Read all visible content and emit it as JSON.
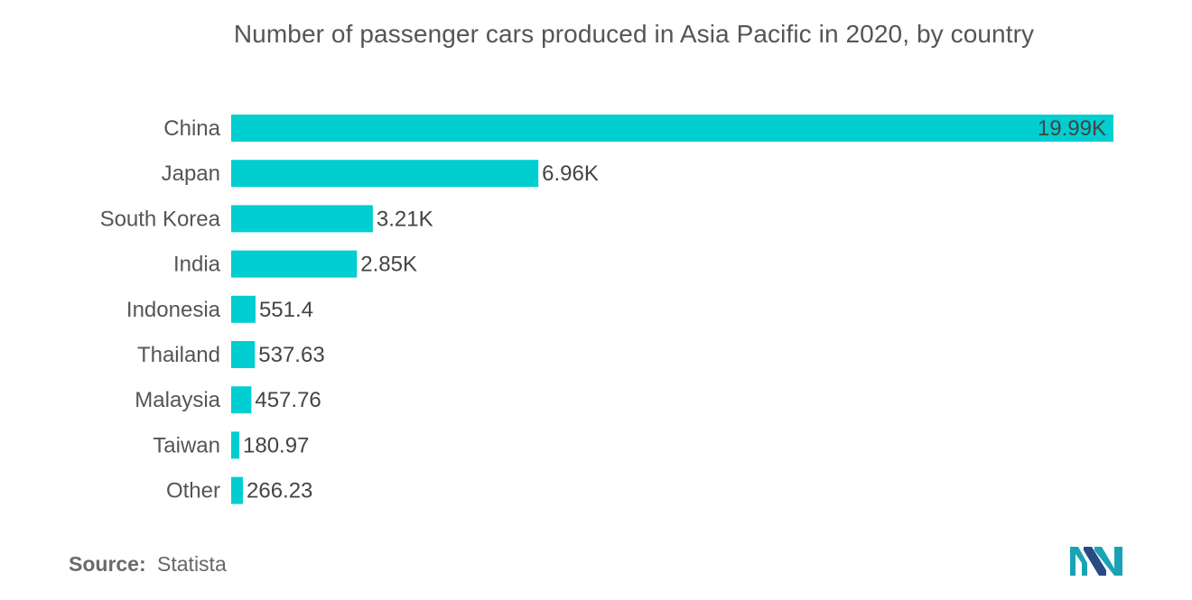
{
  "chart_data": {
    "type": "bar",
    "orientation": "horizontal",
    "title": "Number of passenger cars produced in Asia Pacific in 2020, by country",
    "xlabel": "",
    "ylabel": "",
    "categories": [
      "China",
      "Japan",
      "South Korea",
      "India",
      "Indonesia",
      "Thailand",
      "Malaysia",
      "Taiwan",
      "Other"
    ],
    "values": [
      19990,
      6960,
      3210,
      2850,
      551.4,
      537.63,
      457.76,
      180.97,
      266.23
    ],
    "value_labels": [
      "19.99K",
      "6.96K",
      "3.21K",
      "2.85K",
      "551.4",
      "537.63",
      "457.76",
      "180.97",
      "266.23"
    ],
    "xlim": [
      0,
      19990
    ],
    "grid": false,
    "legend": "none",
    "bar_color": "#00CED1"
  },
  "source": {
    "label": "Source:",
    "value": "Statista"
  },
  "logo": {
    "icon": "mordor-intelligence-logo-icon",
    "colors": [
      "#1aa3b5",
      "#2a4a86"
    ]
  }
}
